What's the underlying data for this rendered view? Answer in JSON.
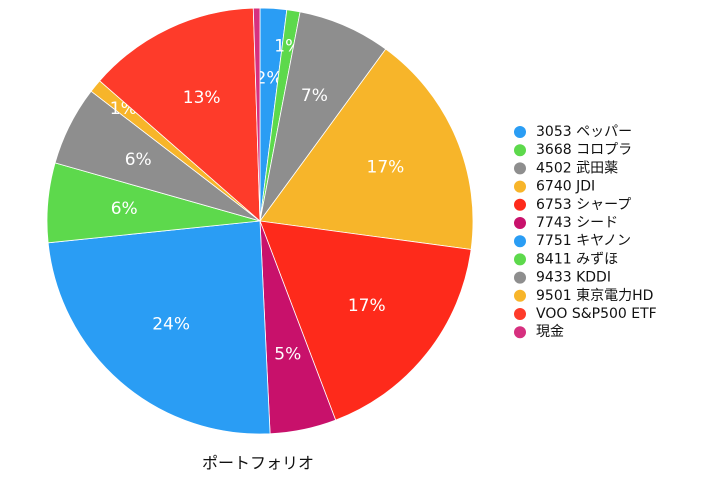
{
  "chart_data": {
    "type": "pie",
    "title": "ポートフォリオ",
    "categories": [
      "3053 ペッパー",
      "3668 コロプラ",
      "4502 武田薬",
      "6740 JDI",
      "6753 シャープ",
      "7743 シード",
      "7751 キヤノン",
      "8411 みずほ",
      "9433 KDDI",
      "9501 東京電力HD",
      "VOO S&P500 ETF",
      "現金"
    ],
    "values": [
      2,
      1,
      7,
      17,
      17,
      5,
      24,
      6,
      6,
      1,
      13,
      0.5
    ],
    "value_labels": [
      "2%",
      "1%",
      "7%",
      "17%",
      "17%",
      "5%",
      "24%",
      "6%",
      "6%",
      "1%",
      "13%",
      null
    ],
    "colors": [
      "#2a9df4",
      "#5dd94c",
      "#8e8e8e",
      "#f7b52a",
      "#fe2a1b",
      "#c8116b",
      "#2a9df4",
      "#5dd94c",
      "#8e8e8e",
      "#f7b52a",
      "#fe3b2a",
      "#d6307f"
    ],
    "legend": "right"
  }
}
